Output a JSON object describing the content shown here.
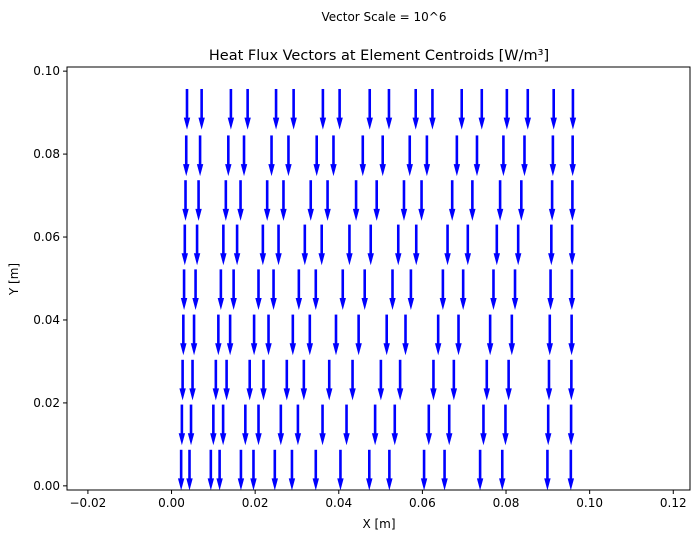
{
  "chart_data": {
    "type": "quiver",
    "suptitle": "Vector Scale = 10^6",
    "title": "Heat Flux Vectors at Element Centroids [W/m³]",
    "xlabel": "X [m]",
    "ylabel": "Y [m]",
    "xlim": [
      -0.025,
      0.124
    ],
    "ylim": [
      -0.001,
      0.101
    ],
    "xticks": [
      -0.02,
      0.0,
      0.02,
      0.04,
      0.06,
      0.08,
      0.1,
      0.12
    ],
    "xtick_labels": [
      "−0.02",
      "0.00",
      "0.02",
      "0.04",
      "0.06",
      "0.08",
      "0.10",
      "0.12"
    ],
    "yticks": [
      0.0,
      0.02,
      0.04,
      0.06,
      0.08,
      0.1
    ],
    "ytick_labels": [
      "0.00",
      "0.02",
      "0.04",
      "0.06",
      "0.08",
      "0.10"
    ],
    "grid": false,
    "vector_color": "#0000ff",
    "rows_y": [
      0.0957,
      0.0845,
      0.0737,
      0.063,
      0.0522,
      0.0413,
      0.0304,
      0.0196,
      0.0087
    ],
    "columns_x_top": [
      0.0037,
      0.0072,
      0.0142,
      0.0182,
      0.025,
      0.0292,
      0.0362,
      0.0402,
      0.0474,
      0.052,
      0.0584,
      0.0624,
      0.0694,
      0.0742,
      0.0802,
      0.0852,
      0.0914,
      0.096
    ],
    "columns_x_bottom": [
      0.0023,
      0.0043,
      0.0094,
      0.0115,
      0.0166,
      0.0196,
      0.0247,
      0.0288,
      0.0345,
      0.0404,
      0.0473,
      0.0521,
      0.0604,
      0.0653,
      0.0738,
      0.0791,
      0.0899,
      0.0955
    ],
    "vector_u": 0.0,
    "vector_v": -0.0098
  }
}
